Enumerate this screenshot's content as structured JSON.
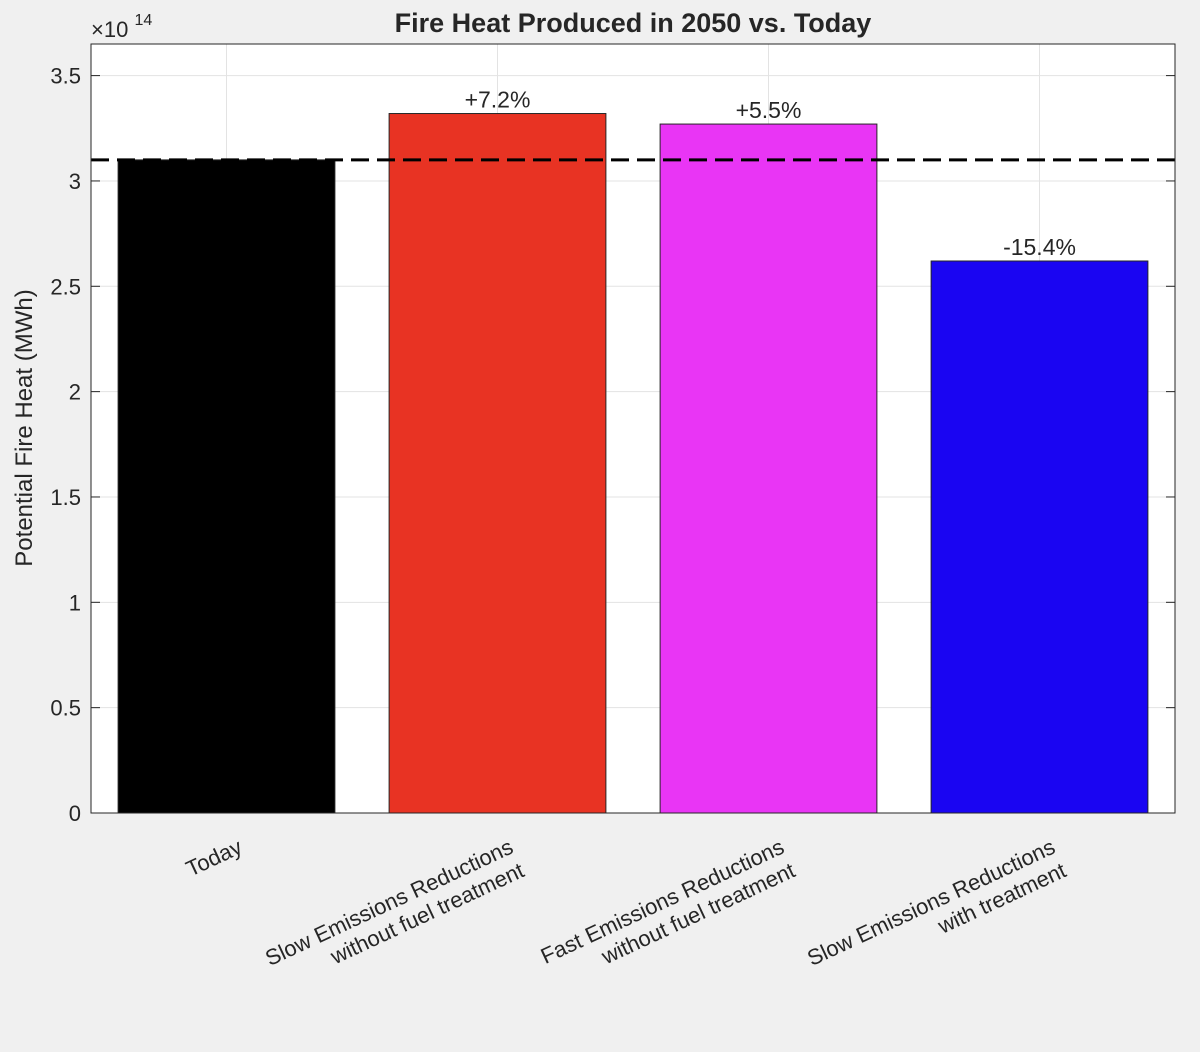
{
  "chart_data": {
    "type": "bar",
    "title": "Fire Heat Produced in 2050 vs. Today",
    "xlabel": "",
    "ylabel": "Potential Fire Heat (MWh)",
    "y_multiplier": {
      "base": "×10",
      "exponent": "14"
    },
    "ylim": [
      0,
      3.65
    ],
    "yticks": [
      0,
      0.5,
      1,
      1.5,
      2,
      2.5,
      3,
      3.5
    ],
    "ytick_labels": [
      "0",
      "0.5",
      "1",
      "1.5",
      "2",
      "2.5",
      "3",
      "3.5"
    ],
    "grid": true,
    "categories": [
      [
        "Today"
      ],
      [
        "Slow Emissions Reductions",
        "without fuel treatment"
      ],
      [
        "Fast Emissions Reductions",
        "without fuel treatment"
      ],
      [
        "Slow Emissions Reductions",
        "with treatment"
      ]
    ],
    "values": [
      3.1,
      3.32,
      3.27,
      2.62
    ],
    "colors": [
      "#000000",
      "#e83323",
      "#e935f5",
      "#1a05f2"
    ],
    "bar_labels": [
      "",
      "+7.2%",
      "+5.5%",
      "-15.4%"
    ],
    "reference_line": {
      "value": 3.1,
      "style": "dashed",
      "color": "#000000"
    }
  }
}
